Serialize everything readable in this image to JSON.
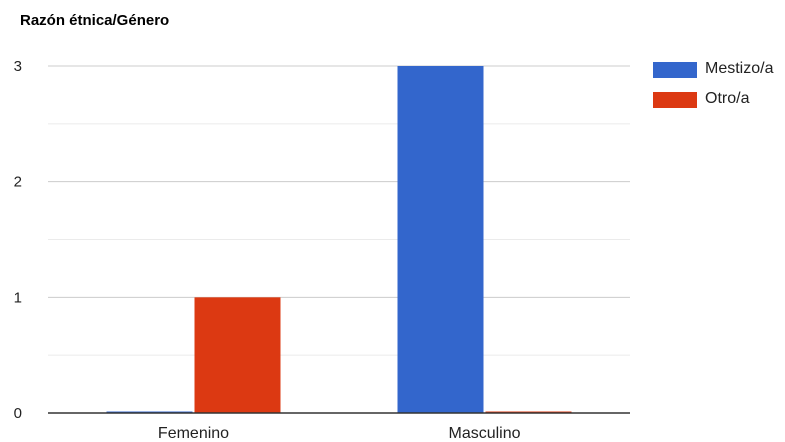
{
  "chart_data": {
    "type": "bar",
    "title": "Razón étnica/Género",
    "categories": [
      "Femenino",
      "Masculino"
    ],
    "series": [
      {
        "name": "Mestizo/a",
        "color": "#3366cc",
        "values": [
          0,
          3
        ]
      },
      {
        "name": "Otro/a",
        "color": "#dc3912",
        "values": [
          1,
          0
        ]
      }
    ],
    "ylim": [
      0,
      3
    ],
    "yticks": [
      0,
      1,
      2,
      3
    ],
    "grid": true,
    "legend": "right"
  }
}
